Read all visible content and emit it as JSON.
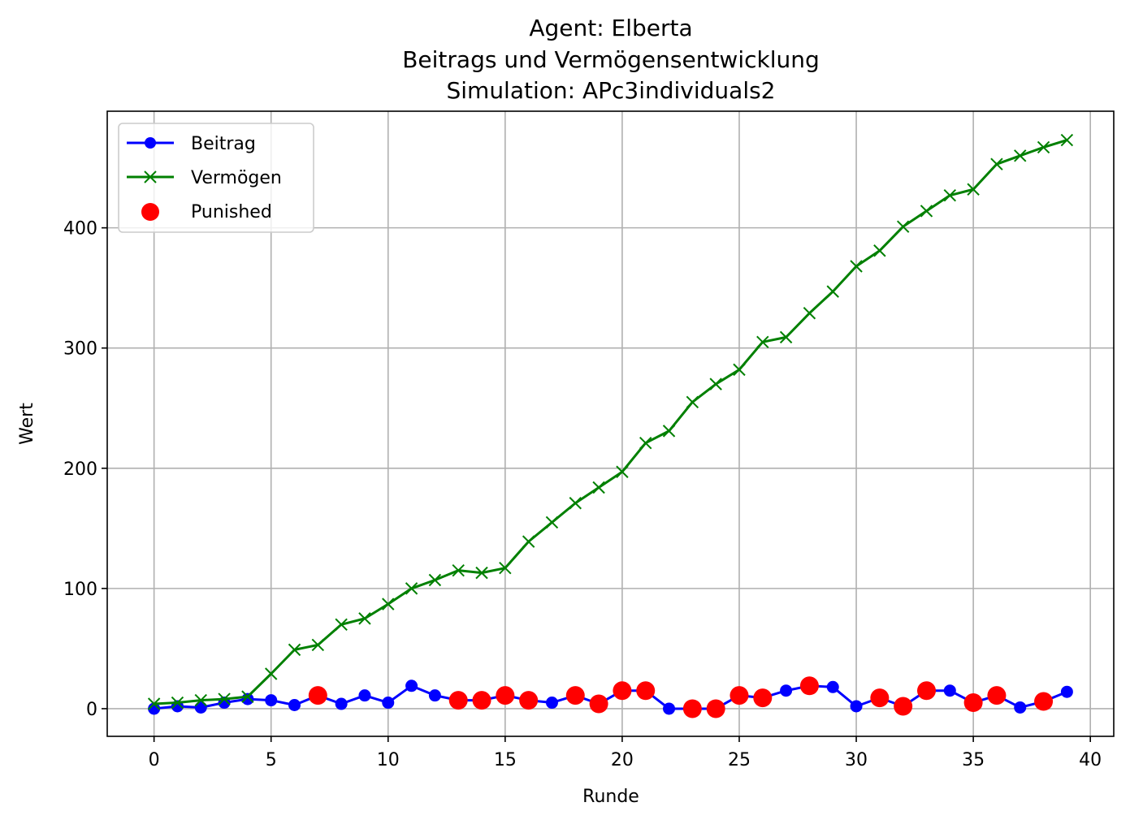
{
  "chart_data": {
    "type": "line",
    "title": [
      "Agent: Elberta",
      "Beitrags und Vermögensentwicklung",
      "Simulation: APc3individuals2"
    ],
    "xlabel": "Runde",
    "ylabel": "Wert",
    "xlim": [
      -2,
      41
    ],
    "ylim": [
      -23,
      497
    ],
    "xticks": [
      0,
      5,
      10,
      15,
      20,
      25,
      30,
      35,
      40
    ],
    "yticks": [
      0,
      100,
      200,
      300,
      400
    ],
    "grid": true,
    "legend_position": "upper-left",
    "x": [
      0,
      1,
      2,
      3,
      4,
      5,
      6,
      7,
      8,
      9,
      10,
      11,
      12,
      13,
      14,
      15,
      16,
      17,
      18,
      19,
      20,
      21,
      22,
      23,
      24,
      25,
      26,
      27,
      28,
      29,
      30,
      31,
      32,
      33,
      34,
      35,
      36,
      37,
      38,
      39
    ],
    "series": [
      {
        "name": "Beitrag",
        "color": "#0000ff",
        "marker": "circle",
        "values": [
          0,
          2,
          1,
          5,
          8,
          7,
          3,
          11,
          4,
          11,
          5,
          19,
          11,
          7,
          7,
          11,
          7,
          5,
          11,
          4,
          15,
          15,
          0,
          0,
          0,
          11,
          9,
          15,
          19,
          18,
          2,
          9,
          2,
          15,
          15,
          5,
          11,
          1,
          6,
          14
        ]
      },
      {
        "name": "Vermögen",
        "color": "#008000",
        "marker": "x",
        "values": [
          4,
          5,
          7,
          8,
          10,
          29,
          49,
          53,
          70,
          75,
          87,
          100,
          107,
          115,
          113,
          117,
          139,
          155,
          171,
          184,
          197,
          221,
          231,
          255,
          270,
          282,
          305,
          309,
          329,
          347,
          368,
          381,
          401,
          414,
          427,
          432,
          453,
          460,
          467,
          473
        ]
      }
    ],
    "punished": {
      "name": "Punished",
      "color": "#ff0000",
      "marker": "circle",
      "rounds": [
        7,
        13,
        14,
        15,
        16,
        18,
        19,
        20,
        21,
        23,
        24,
        25,
        26,
        28,
        31,
        32,
        33,
        35,
        36,
        38
      ],
      "values": [
        11,
        7,
        7,
        11,
        7,
        11,
        4,
        15,
        15,
        0,
        0,
        11,
        9,
        19,
        9,
        2,
        15,
        5,
        11,
        6
      ]
    }
  }
}
